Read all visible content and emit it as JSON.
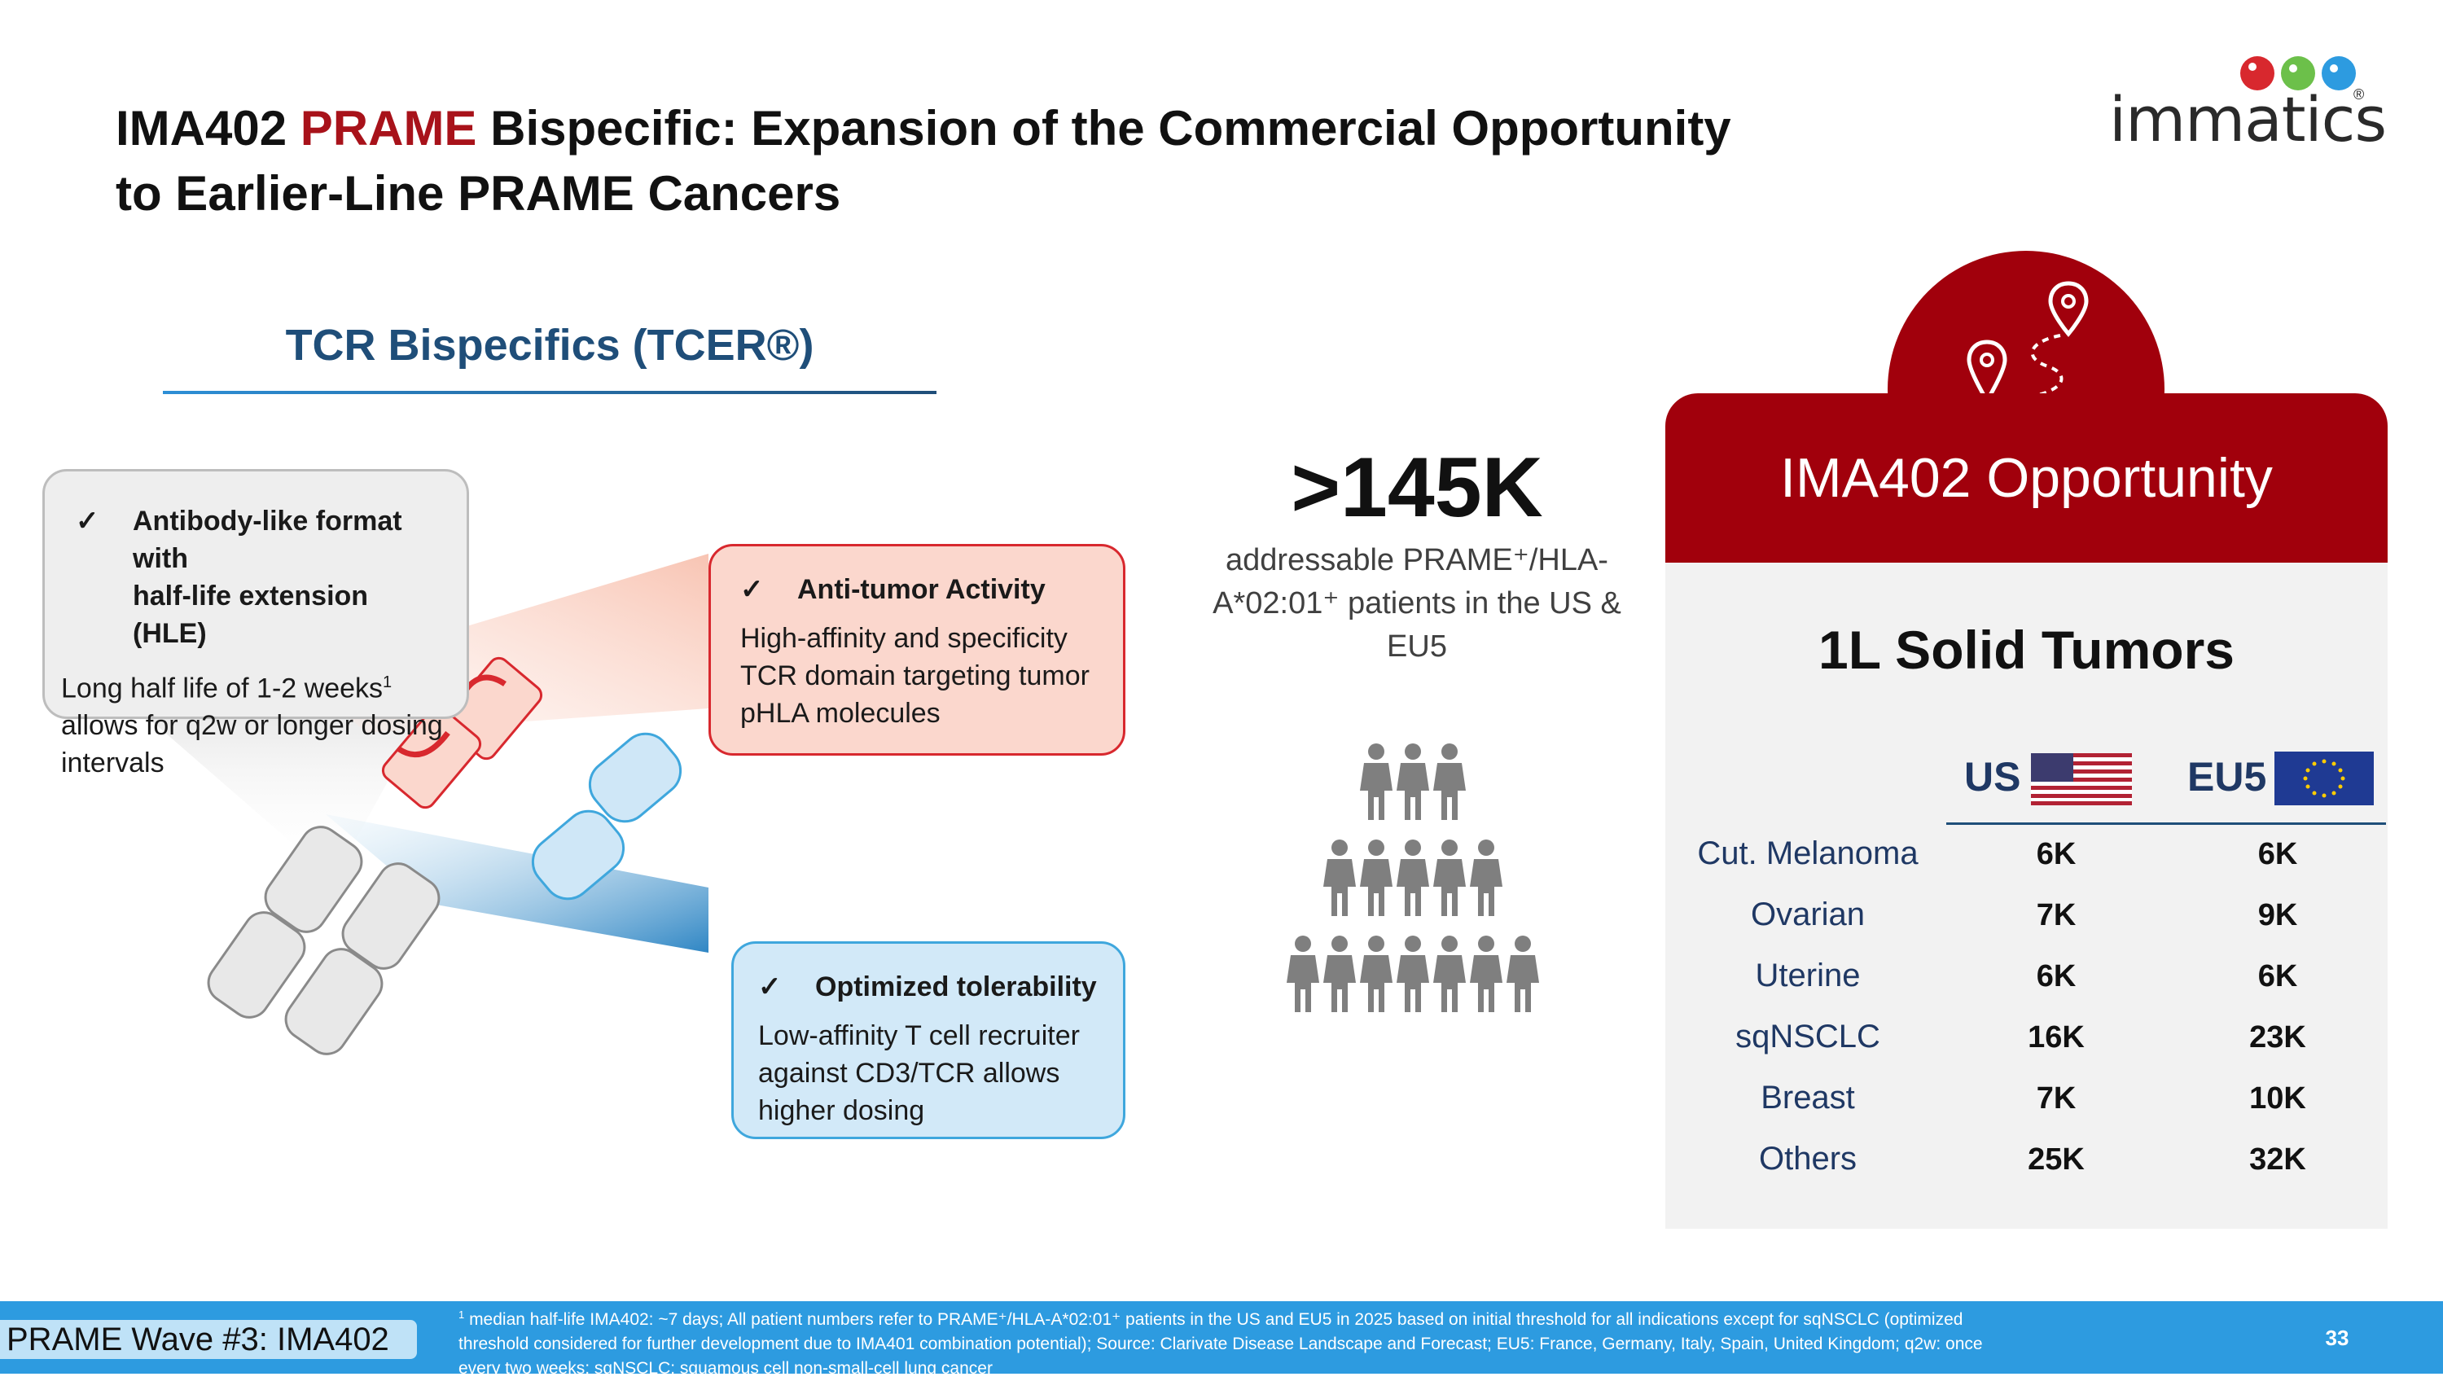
{
  "title": {
    "part1": "IMA402 ",
    "accent": "PRAME",
    "part2": " Bispecific: Expansion of the Commercial Opportunity",
    "line2": "to Earlier-Line PRAME Cancers"
  },
  "logo": {
    "text": "immatics",
    "mark": "®"
  },
  "tcr": {
    "heading": "TCR Bispecifics (TCER®)"
  },
  "callouts": {
    "hle": {
      "check": "✓",
      "title_line1": "Antibody-like format with",
      "title_line2": "half-life extension (HLE)",
      "body_line1a": "Long half life of 1-2 weeks",
      "body_line1_sup": "1",
      "body_line2": "allows for q2w or longer dosing",
      "body_line3": "intervals"
    },
    "anti_tumor": {
      "check": "✓",
      "title": "Anti-tumor Activity",
      "body_line1": "High-affinity and specificity",
      "body_line2": "TCR domain targeting tumor",
      "body_line3": "pHLA molecules"
    },
    "tolerability": {
      "check": "✓",
      "title": "Optimized tolerability",
      "body_line1": "Low-affinity T cell recruiter",
      "body_line2": "against CD3/TCR allows",
      "body_line3": "higher dosing"
    }
  },
  "stat": {
    "number": ">145K",
    "line1": "addressable PRAME⁺/HLA-",
    "line2": "A*02:01⁺ patients in the US &",
    "line3": "EU5"
  },
  "opportunity": {
    "title": "IMA402 Opportunity",
    "subtitle": "1L Solid Tumors",
    "col_us": "US",
    "col_eu": "EU5",
    "rows": [
      {
        "label": "Cut. Melanoma",
        "us": "6K",
        "eu": "6K"
      },
      {
        "label": "Ovarian",
        "us": "7K",
        "eu": "9K"
      },
      {
        "label": "Uterine",
        "us": "6K",
        "eu": "6K"
      },
      {
        "label": "sqNSCLC",
        "us": "16K",
        "eu": "23K"
      },
      {
        "label": "Breast",
        "us": "7K",
        "eu": "10K"
      },
      {
        "label": "Others",
        "us": "25K",
        "eu": "32K"
      }
    ]
  },
  "footer": {
    "tag": "PRAME Wave #3: IMA402",
    "note_sup": "1",
    "note_line1": " median half-life IMA402: ~7 days;  All patient numbers refer to PRAME⁺/HLA-A*02:01⁺ patients in the US and EU5 in 2025 based on initial threshold for all indications except for sqNSCLC (optimized",
    "note_line2": "threshold considered for further development due to IMA401 combination potential); Source: Clarivate Disease Landscape and Forecast; EU5: France, Germany, Italy, Spain, United Kingdom; q2w: once",
    "note_line3": "every two weeks; sqNSCLC: squamous cell non-small-cell lung cancer",
    "page": "33"
  },
  "colors": {
    "accent_red": "#a1000c",
    "navy": "#1f3864",
    "footer_blue": "#2d9be0"
  }
}
